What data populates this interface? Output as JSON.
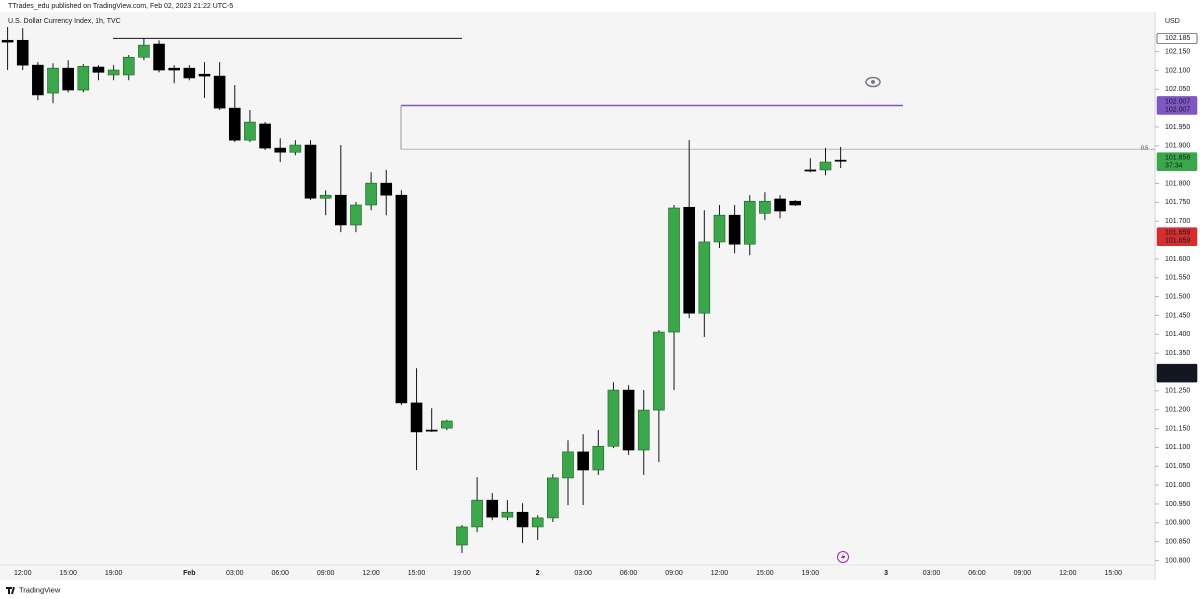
{
  "header": {
    "publisher": "TTrades_edu published on TradingView.com, Feb 02, 2023 21:22 UTC-5",
    "brand": "TradingView"
  },
  "chart_data": {
    "type": "candlestick",
    "title": "U.S. Dollar Currency Index, 1h, TVC",
    "currency": "USD",
    "categories": [
      null,
      "12:00",
      null,
      null,
      "15:00",
      null,
      null,
      "19:00",
      null,
      null,
      null,
      null,
      "Feb",
      null,
      null,
      "03:00",
      null,
      null,
      "06:00",
      null,
      null,
      "09:00",
      null,
      null,
      "12:00",
      null,
      null,
      "15:00",
      null,
      null,
      "19:00",
      null,
      null,
      null,
      null,
      "2",
      null,
      null,
      "03:00",
      null,
      null,
      "06:00",
      null,
      null,
      "09:00",
      null,
      null,
      "12:00",
      null,
      null,
      "15:00",
      null,
      null,
      "19:00",
      null,
      null,
      null,
      null,
      "3",
      null,
      null,
      "03:00",
      null,
      null,
      "06:00",
      null,
      null,
      "09:00",
      null,
      null,
      "12:00",
      null,
      null,
      "15:00",
      null
    ],
    "open": [
      102.18,
      102.18,
      102.114,
      102.04,
      102.106,
      102.048,
      102.109,
      102.088,
      102.088,
      102.135,
      102.17,
      102.106,
      102.106,
      102.09,
      102.085,
      102.0,
      101.915,
      101.958,
      101.894,
      101.883,
      101.902,
      101.761,
      101.769,
      101.69,
      101.743,
      101.801,
      101.769,
      101.218,
      101.146,
      101.151,
      100.841,
      100.889,
      100.96,
      100.915,
      100.928,
      100.889,
      100.913,
      101.019,
      101.088,
      101.04,
      101.103,
      101.252,
      101.093,
      101.199,
      101.406,
      101.737,
      101.456,
      101.645,
      101.716,
      101.639,
      101.721,
      101.759,
      101.753,
      101.836,
      101.836,
      101.862,
      null,
      null,
      null,
      null,
      null,
      null,
      null,
      null,
      null,
      null,
      null,
      null,
      null,
      null,
      null,
      null,
      null,
      null,
      null
    ],
    "high": [
      102.215,
      102.212,
      102.122,
      102.119,
      102.127,
      102.117,
      102.114,
      102.114,
      102.141,
      102.186,
      102.18,
      102.114,
      102.114,
      102.122,
      102.122,
      102.061,
      101.995,
      101.963,
      101.92,
      101.915,
      101.915,
      101.782,
      101.902,
      101.751,
      101.83,
      101.836,
      101.782,
      101.31,
      101.204,
      101.173,
      100.894,
      101.021,
      100.979,
      100.96,
      100.952,
      100.92,
      101.029,
      101.119,
      101.135,
      101.146,
      101.273,
      101.265,
      101.252,
      101.411,
      101.743,
      101.915,
      101.729,
      101.743,
      101.743,
      101.769,
      101.777,
      101.769,
      101.756,
      101.867,
      101.894,
      101.897,
      null,
      null,
      null,
      null,
      null,
      null,
      null,
      null,
      null,
      null,
      null,
      null,
      null,
      null,
      null,
      null,
      null,
      null,
      null
    ],
    "low": [
      102.101,
      102.101,
      102.021,
      102.013,
      102.042,
      102.042,
      102.074,
      102.074,
      102.074,
      102.127,
      102.095,
      102.066,
      102.074,
      102.027,
      101.995,
      101.91,
      101.91,
      101.889,
      101.857,
      101.875,
      101.756,
      101.716,
      101.671,
      101.671,
      101.729,
      101.716,
      101.212,
      101.04,
      101.141,
      101.146,
      100.82,
      100.875,
      100.907,
      100.907,
      100.846,
      100.854,
      100.902,
      100.947,
      100.947,
      101.027,
      101.098,
      101.08,
      101.027,
      101.061,
      101.252,
      101.443,
      101.393,
      101.629,
      101.615,
      101.61,
      101.703,
      101.708,
      101.74,
      101.83,
      101.822,
      101.841,
      null,
      null,
      null,
      null,
      null,
      null,
      null,
      null,
      null,
      null,
      null,
      null,
      null,
      null,
      null,
      null,
      null,
      null,
      null
    ],
    "close": [
      102.175,
      102.114,
      102.035,
      102.106,
      102.048,
      102.111,
      102.095,
      102.101,
      102.135,
      102.167,
      102.101,
      102.101,
      102.08,
      102.085,
      102.0,
      101.915,
      101.963,
      101.894,
      101.883,
      101.902,
      101.761,
      101.769,
      101.69,
      101.743,
      101.801,
      101.769,
      101.218,
      101.141,
      101.143,
      101.17,
      100.889,
      100.96,
      100.915,
      100.928,
      100.889,
      100.913,
      101.019,
      101.088,
      101.04,
      101.103,
      101.252,
      101.093,
      101.199,
      101.406,
      101.735,
      101.456,
      101.645,
      101.716,
      101.639,
      101.753,
      101.753,
      101.727,
      101.743,
      101.833,
      101.857,
      101.859,
      null,
      null,
      null,
      null,
      null,
      null,
      null,
      null,
      null,
      null,
      null,
      null,
      null,
      null,
      null,
      null,
      null,
      null,
      null
    ],
    "up_color": "#3aa84a",
    "down_color": "#000000",
    "ylim": [
      100.788,
      102.255
    ],
    "yticks": [
      {
        "value": 102.15,
        "label": "102.150"
      },
      {
        "value": 102.1,
        "label": "102.100"
      },
      {
        "value": 102.05,
        "label": "102.050"
      },
      {
        "value": 101.95,
        "label": "101.950"
      },
      {
        "value": 101.9,
        "label": "101.900"
      },
      {
        "value": 101.8,
        "label": "101.800"
      },
      {
        "value": 101.75,
        "label": "101.750"
      },
      {
        "value": 101.7,
        "label": "101.700"
      },
      {
        "value": 101.6,
        "label": "101.600"
      },
      {
        "value": 101.55,
        "label": "101.550"
      },
      {
        "value": 101.5,
        "label": "101.500"
      },
      {
        "value": 101.45,
        "label": "101.450"
      },
      {
        "value": 101.4,
        "label": "101.400"
      },
      {
        "value": 101.35,
        "label": "101.350"
      },
      {
        "value": 101.25,
        "label": "101.250"
      },
      {
        "value": 101.2,
        "label": "101.200"
      },
      {
        "value": 101.15,
        "label": "101.150"
      },
      {
        "value": 101.1,
        "label": "101.100"
      },
      {
        "value": 101.05,
        "label": "101.050"
      },
      {
        "value": 101.0,
        "label": "101.000"
      },
      {
        "value": 100.95,
        "label": "100.950"
      },
      {
        "value": 100.9,
        "label": "100.900"
      },
      {
        "value": 100.85,
        "label": "100.850"
      },
      {
        "value": 100.8,
        "label": "100.800"
      }
    ],
    "grid": false,
    "levels": [
      {
        "value": 102.185,
        "color": "#131722"
      },
      {
        "value": 102.007,
        "color": "#7e57c2"
      },
      {
        "value": 101.891,
        "label": "0.5",
        "color": "#b2b5be"
      }
    ],
    "price_labels": [
      {
        "values": [
          102.185
        ],
        "color": "#ffffff",
        "text_color": "#131722"
      },
      {
        "values": [
          102.007,
          102.007
        ],
        "color": "#7e57c2",
        "text_color": "#ffffff"
      },
      {
        "values": [
          101.858
        ],
        "countdown": "37:34",
        "color": "#3aa84a",
        "text_color": "#ffffff"
      },
      {
        "values": [
          101.659,
          101.659
        ],
        "color": "#d32f2f",
        "text_color": "#ffffff"
      },
      {
        "values": [
          101.297,
          101.297
        ],
        "color": "#131722",
        "text_color": "#ffffff"
      }
    ]
  }
}
